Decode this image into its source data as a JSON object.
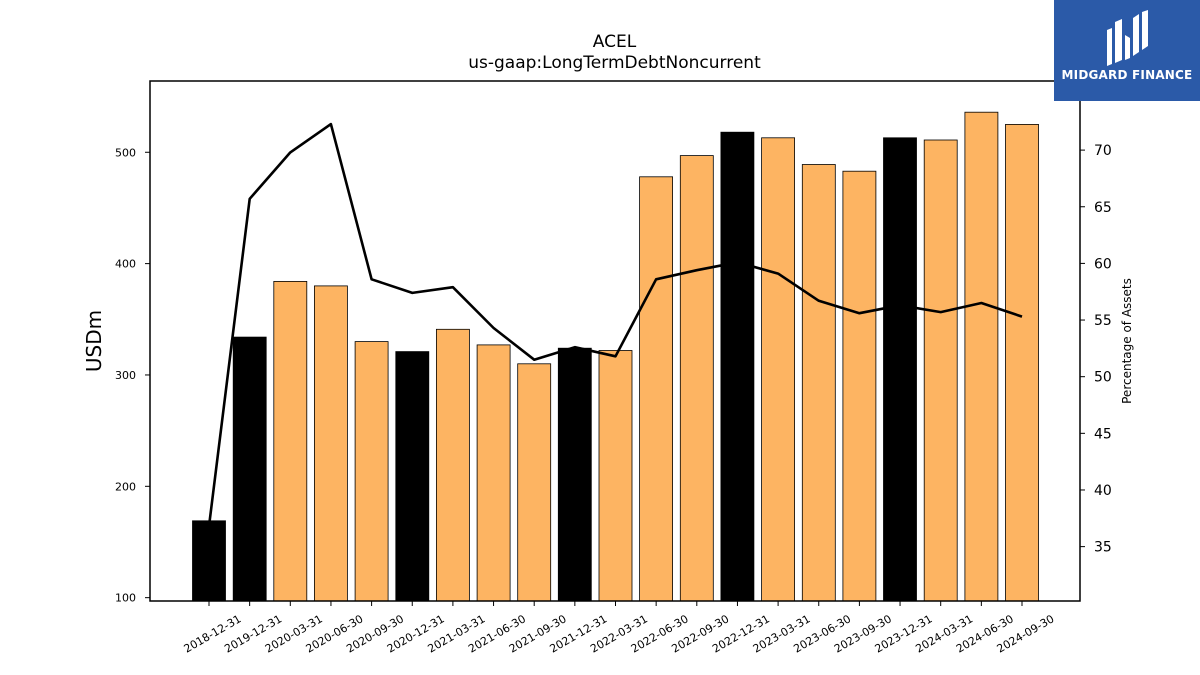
{
  "title": "ACEL",
  "subtitle": "us-gaap:LongTermDebtNoncurrent",
  "logo": {
    "text": "MIDGARD FINANCE",
    "icon": "midgard-logo-icon",
    "background": "#2b5aa8"
  },
  "colors": {
    "annual_bar": "#000000",
    "quarter_bar": "#fdb462",
    "line": "#000000"
  },
  "chart_data": {
    "type": "bar",
    "ylabel": "USDm",
    "y2label": "Percentage of Assets",
    "ylim": [
      97,
      564
    ],
    "y2lim": [
      30.2,
      76.1
    ],
    "yticks": [
      100,
      200,
      300,
      400,
      500
    ],
    "y2ticks": [
      35,
      40,
      45,
      50,
      55,
      60,
      65,
      70
    ],
    "categories": [
      "2018-12-31",
      "2019-12-31",
      "2020-03-31",
      "2020-06-30",
      "2020-09-30",
      "2020-12-31",
      "2021-03-31",
      "2021-06-30",
      "2021-09-30",
      "2021-12-31",
      "2022-03-31",
      "2022-06-30",
      "2022-09-30",
      "2022-12-31",
      "2023-03-31",
      "2023-06-30",
      "2023-09-30",
      "2023-12-31",
      "2024-03-31",
      "2024-06-30",
      "2024-09-30"
    ],
    "series": [
      {
        "type": "bar",
        "values": [
          169,
          334,
          384,
          380,
          330,
          321,
          341,
          327,
          310,
          324,
          322,
          478,
          497,
          518,
          513,
          489,
          483,
          513,
          511,
          536,
          525
        ],
        "annual": [
          true,
          true,
          false,
          false,
          false,
          true,
          false,
          false,
          false,
          true,
          false,
          false,
          false,
          true,
          false,
          false,
          false,
          true,
          false,
          false,
          false
        ]
      },
      {
        "type": "line",
        "axis": "y2",
        "values": [
          36.8,
          65.7,
          69.8,
          72.3,
          58.6,
          57.4,
          57.9,
          54.3,
          51.5,
          52.6,
          51.8,
          58.6,
          59.4,
          60.1,
          59.1,
          56.7,
          55.6,
          56.3,
          55.7,
          56.5,
          55.3
        ]
      }
    ]
  }
}
